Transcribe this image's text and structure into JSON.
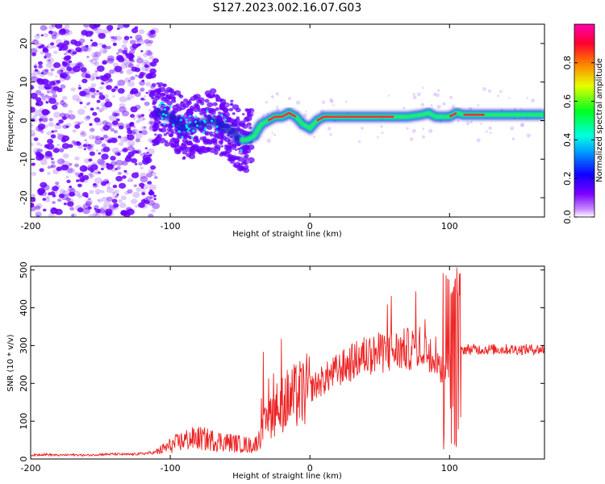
{
  "title": "S127.2023.002.16.07.G03",
  "colors": {
    "snr_line": "#ee2222",
    "spectrum_scatter": "#6a00ff",
    "spectrum_track_core": "#ff2a3a",
    "spectrum_track_mid": "#22ee66",
    "spectrum_track_edge": "#1a1acc"
  },
  "chart_data": [
    {
      "type": "heatmap",
      "xlabel": "Height of straight line (km)",
      "ylabel": "Frequency (Hz)",
      "xlim": [
        -200,
        168
      ],
      "ylim": [
        -25,
        25
      ],
      "xticks": [
        -200,
        -100,
        0,
        100
      ],
      "yticks": [
        -20,
        -10,
        0,
        10,
        20
      ],
      "colorbar": {
        "label": "Normalized spectral amplitude",
        "range": [
          0,
          1
        ],
        "ticks": [
          "0.0",
          "0.2",
          "0.4",
          "0.6",
          "0.8"
        ],
        "colormap": "rainbow (purple-blue-cyan-green-yellow-red-magenta)"
      },
      "grid": false,
      "dominant_frequency_track": {
        "x": [
          -108,
          -100,
          -90,
          -80,
          -70,
          -60,
          -55,
          -50,
          -45,
          -40,
          -35,
          -30,
          -25,
          -20,
          -15,
          -10,
          -5,
          0,
          5,
          10,
          20,
          30,
          40,
          50,
          60,
          70,
          80,
          85,
          90,
          95,
          100,
          105,
          110,
          120,
          130,
          140,
          150,
          160,
          168
        ],
        "y": [
          2,
          1,
          -2,
          -1,
          0,
          -2,
          -3,
          -5,
          -5,
          -4,
          -1,
          0,
          1,
          1,
          2,
          1,
          -1,
          -2,
          0,
          1,
          1,
          1,
          1,
          1,
          1,
          1,
          1.5,
          2,
          1,
          1,
          1,
          2,
          1.5,
          1.5,
          1.5,
          1.5,
          1.5,
          1.5,
          1.5
        ]
      }
    },
    {
      "type": "line",
      "xlabel": "Height of straight line (km)",
      "ylabel": "SNR (10 * v/v)",
      "xlim": [
        -200,
        168
      ],
      "ylim": [
        0,
        510
      ],
      "xticks": [
        -200,
        -100,
        0,
        100
      ],
      "yticks": [
        0,
        100,
        200,
        300,
        400,
        500
      ],
      "grid": false,
      "series": [
        {
          "x": [
            -200,
            -190,
            -180,
            -170,
            -160,
            -150,
            -140,
            -130,
            -120,
            -110,
            -100,
            -90,
            -80,
            -70,
            -60,
            -50,
            -40,
            -35,
            -30,
            -20,
            -10,
            0,
            10,
            20,
            30,
            40,
            50,
            60,
            70,
            80,
            90,
            95,
            100,
            105,
            110,
            120,
            130,
            140,
            150,
            160,
            168
          ],
          "values": [
            10,
            12,
            10,
            11,
            10,
            12,
            13,
            12,
            14,
            18,
            35,
            50,
            55,
            50,
            45,
            40,
            35,
            60,
            110,
            150,
            165,
            185,
            210,
            235,
            255,
            275,
            280,
            285,
            290,
            295,
            280,
            240,
            250,
            270,
            290,
            290,
            290,
            290,
            290,
            290,
            290
          ]
        }
      ]
    }
  ]
}
